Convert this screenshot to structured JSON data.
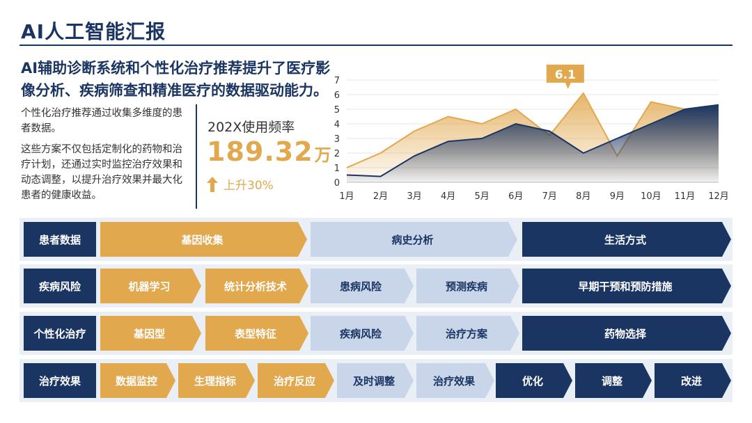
{
  "title": "AI人工智能汇报",
  "headline": "AI辅助诊断系统和个性化治疗推荐提升了医疗影像分析、疾病筛查和精准医疗的数据驱动能力。",
  "description": [
    "个性化治疗推荐通过收集多维度的患者数据。",
    "这些方案不仅包括定制化的药物和治疗计划，还通过实时监控治疗效果和动态调整，以提升治疗效果并最大化患者的健康收益。"
  ],
  "kpi": {
    "label": "202X使用频率",
    "value": "189.32",
    "unit": "万",
    "growth": "上升30%"
  },
  "chart_data": {
    "type": "area",
    "categories": [
      "1月",
      "2月",
      "3月",
      "4月",
      "5月",
      "6月",
      "7月",
      "8月",
      "9月",
      "10月",
      "11月",
      "12月"
    ],
    "series": [
      {
        "values": [
          1.0,
          2.0,
          3.5,
          4.5,
          4.0,
          5.0,
          3.2,
          6.1,
          1.8,
          5.5,
          5.0,
          5.3
        ],
        "color": "#e1a84e"
      },
      {
        "values": [
          0.5,
          0.4,
          1.8,
          2.8,
          3.0,
          4.0,
          3.5,
          2.0,
          3.0,
          4.0,
          5.0,
          5.3
        ],
        "color": "#1b3563"
      }
    ],
    "ylim": [
      0,
      7
    ],
    "yticks": [
      "0",
      "1",
      "2",
      "3",
      "4",
      "5",
      "6",
      "7"
    ],
    "grid": true,
    "callout": {
      "label": "6.1",
      "category_index": 7
    }
  },
  "rows": [
    {
      "label": "患者数据",
      "items": [
        {
          "text": "基因收集",
          "style": "gold"
        },
        {
          "text": "病史分析",
          "style": "light"
        },
        {
          "text": "生活方式",
          "style": "navy"
        }
      ]
    },
    {
      "label": "疾病风险",
      "items": [
        {
          "text": "机器学习",
          "style": "gold"
        },
        {
          "text": "统计分析技术",
          "style": "gold"
        },
        {
          "text": "患病风险",
          "style": "light"
        },
        {
          "text": "预测疾病",
          "style": "light"
        },
        {
          "text": "早期干预和预防措施",
          "style": "navy"
        }
      ]
    },
    {
      "label": "个性化治疗",
      "items": [
        {
          "text": "基因型",
          "style": "gold"
        },
        {
          "text": "表型特征",
          "style": "gold"
        },
        {
          "text": "疾病风险",
          "style": "light"
        },
        {
          "text": "治疗方案",
          "style": "light"
        },
        {
          "text": "药物选择",
          "style": "navy"
        }
      ]
    },
    {
      "label": "治疗效果",
      "items": [
        {
          "text": "数据监控",
          "style": "gold"
        },
        {
          "text": "生理指标",
          "style": "gold"
        },
        {
          "text": "治疗反应",
          "style": "gold"
        },
        {
          "text": "及时调整",
          "style": "light"
        },
        {
          "text": "治疗效果",
          "style": "light"
        },
        {
          "text": "优化",
          "style": "navy"
        },
        {
          "text": "调整",
          "style": "navy"
        },
        {
          "text": "改进",
          "style": "navy"
        }
      ]
    }
  ]
}
